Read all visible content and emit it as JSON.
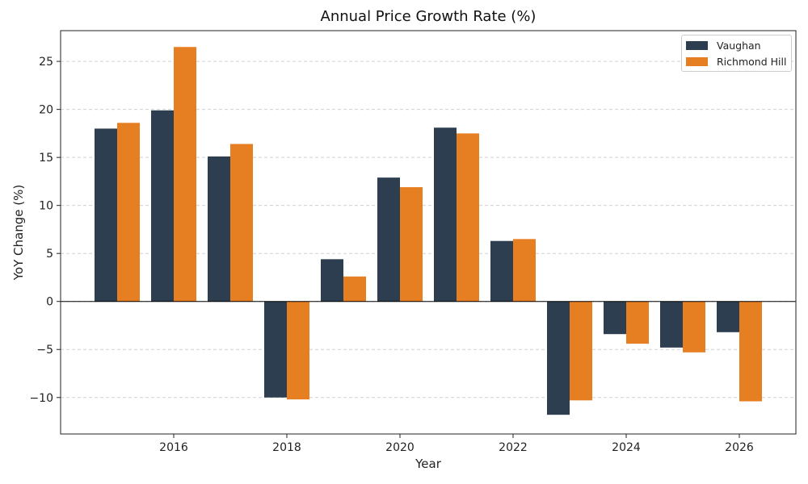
{
  "chart_data": {
    "type": "bar",
    "title": "Annual Price Growth Rate (%)",
    "xlabel": "Year",
    "ylabel": "YoY Change (%)",
    "x": [
      2015,
      2016,
      2017,
      2018,
      2019,
      2020,
      2021,
      2022,
      2023,
      2024,
      2025,
      2026
    ],
    "xticks": [
      2016,
      2018,
      2020,
      2022,
      2024,
      2026
    ],
    "yticks": [
      25,
      20,
      15,
      10,
      5,
      0,
      -5,
      -10
    ],
    "xlim": [
      2014,
      2027
    ],
    "ylim": [
      -13.8,
      28.2
    ],
    "grid": true,
    "legend_position": "top-right",
    "series": [
      {
        "name": "Vaughan",
        "color": "#2c3e50",
        "values": [
          18.0,
          19.9,
          15.1,
          -10.0,
          4.4,
          12.9,
          18.1,
          6.3,
          -11.8,
          -3.4,
          -4.8,
          -3.2
        ]
      },
      {
        "name": "Richmond Hill",
        "color": "#e67e22",
        "values": [
          18.6,
          26.5,
          16.4,
          -10.2,
          2.6,
          11.9,
          17.5,
          6.5,
          -10.3,
          -4.4,
          -5.3,
          -10.4
        ]
      }
    ]
  }
}
